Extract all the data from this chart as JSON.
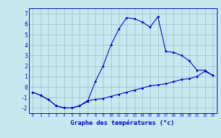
{
  "xlabel": "Graphe des températures (°c)",
  "x": [
    0,
    1,
    2,
    3,
    4,
    5,
    6,
    7,
    8,
    9,
    10,
    11,
    12,
    13,
    14,
    15,
    16,
    17,
    18,
    19,
    20,
    21,
    22,
    23
  ],
  "y_upper": [
    -0.5,
    -0.8,
    -1.2,
    -1.8,
    -2.0,
    -2.0,
    -1.8,
    -1.4,
    0.5,
    2.0,
    4.0,
    5.5,
    6.6,
    6.5,
    6.2,
    5.7,
    6.7,
    3.4,
    3.3,
    3.0,
    2.5,
    1.6,
    1.6,
    1.1
  ],
  "y_lower": [
    -0.5,
    -0.8,
    -1.2,
    -1.8,
    -2.0,
    -2.0,
    -1.8,
    -1.3,
    -1.2,
    -1.1,
    -0.9,
    -0.7,
    -0.5,
    -0.3,
    -0.1,
    0.1,
    0.2,
    0.3,
    0.5,
    0.7,
    0.8,
    1.0,
    1.5,
    1.1
  ],
  "line_color": "#0000cc",
  "bg_color": "#c8e8f0",
  "grid_color": "#99bbcc",
  "ylim": [
    -2.5,
    7.5
  ],
  "xlim": [
    -0.5,
    23.5
  ],
  "yticks": [
    -2,
    -1,
    0,
    1,
    2,
    3,
    4,
    5,
    6,
    7
  ],
  "xticks": [
    0,
    1,
    2,
    3,
    4,
    5,
    6,
    7,
    8,
    9,
    10,
    11,
    12,
    13,
    14,
    15,
    16,
    17,
    18,
    19,
    20,
    21,
    22,
    23
  ]
}
